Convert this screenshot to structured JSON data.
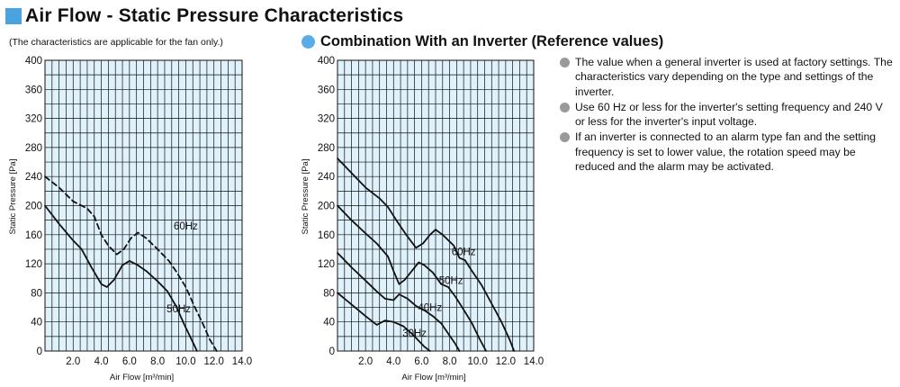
{
  "header": {
    "title": "Air Flow - Static Pressure Characteristics",
    "subtitle_note": "(The characteristics are applicable for the fan only.)",
    "accent_color": "#4aa3df"
  },
  "inverter_header": {
    "title": "Combination With an Inverter (Reference values)",
    "dot_color": "#5aace6"
  },
  "notes": [
    "The value when a general inverter is used at factory settings. The characteristics vary depending on the type and settings of the inverter.",
    "Use 60 Hz or less for the inverter's setting frequency and 240 V or less for the inverter's input voltage.",
    "If an inverter is connected to an alarm type fan and the setting frequency is set to lower value, the rotation speed may be reduced and the alarm may be activated."
  ],
  "chart_data": [
    {
      "type": "line",
      "xlabel": "Air Flow [m³/min]",
      "ylabel": "Static Pressure [Pa]",
      "xlim": [
        0,
        14
      ],
      "ylim": [
        0,
        400
      ],
      "x_ticks": [
        "2.0",
        "4.0",
        "6.0",
        "8.0",
        "10.0",
        "12.0",
        "14.0"
      ],
      "y_ticks": [
        "0",
        "40",
        "80",
        "120",
        "160",
        "200",
        "240",
        "280",
        "320",
        "360",
        "400"
      ],
      "grid": true,
      "series": [
        {
          "name": "60Hz",
          "style": "dashed",
          "label_at": [
            10.0,
            172
          ],
          "points": [
            [
              0,
              240
            ],
            [
              1,
              225
            ],
            [
              2,
              206
            ],
            [
              3,
              196
            ],
            [
              3.5,
              185
            ],
            [
              4,
              160
            ],
            [
              4.5,
              145
            ],
            [
              5.1,
              133
            ],
            [
              5.6,
              140
            ],
            [
              6.1,
              155
            ],
            [
              6.6,
              163
            ],
            [
              7.2,
              155
            ],
            [
              8,
              140
            ],
            [
              8.8,
              124
            ],
            [
              9.3,
              110
            ],
            [
              10,
              88
            ],
            [
              10.6,
              62
            ],
            [
              11.2,
              38
            ],
            [
              11.7,
              16
            ],
            [
              12.2,
              0
            ]
          ]
        },
        {
          "name": "50Hz",
          "style": "solid",
          "label_at": [
            9.5,
            58
          ],
          "points": [
            [
              0,
              200
            ],
            [
              1,
              175
            ],
            [
              2,
              152
            ],
            [
              2.6,
              140
            ],
            [
              3.3,
              115
            ],
            [
              4,
              92
            ],
            [
              4.4,
              88
            ],
            [
              4.9,
              98
            ],
            [
              5.5,
              118
            ],
            [
              6,
              124
            ],
            [
              6.6,
              118
            ],
            [
              7.2,
              110
            ],
            [
              8,
              96
            ],
            [
              8.7,
              82
            ],
            [
              9.3,
              62
            ],
            [
              9.9,
              36
            ],
            [
              10.5,
              12
            ],
            [
              10.8,
              0
            ]
          ]
        }
      ]
    },
    {
      "type": "line",
      "xlabel": "Air Flow [m³/min]",
      "ylabel": "Static Pressure [Pa]",
      "xlim": [
        0,
        14
      ],
      "ylim": [
        0,
        400
      ],
      "x_ticks": [
        "2.0",
        "4.0",
        "6.0",
        "8.0",
        "10.0",
        "12.0",
        "14.0"
      ],
      "y_ticks": [
        "0",
        "40",
        "80",
        "120",
        "160",
        "200",
        "240",
        "280",
        "320",
        "360",
        "400"
      ],
      "grid": true,
      "series": [
        {
          "name": "60Hz",
          "label_at": [
            9.0,
            137
          ],
          "points": [
            [
              0,
              265
            ],
            [
              1,
              245
            ],
            [
              2,
              225
            ],
            [
              3,
              210
            ],
            [
              3.6,
              198
            ],
            [
              4.2,
              180
            ],
            [
              4.9,
              160
            ],
            [
              5.6,
              142
            ],
            [
              6.1,
              148
            ],
            [
              6.6,
              160
            ],
            [
              7,
              167
            ],
            [
              7.5,
              160
            ],
            [
              8.3,
              145
            ],
            [
              8.7,
              128
            ],
            [
              9.1,
              125
            ],
            [
              9.6,
              110
            ],
            [
              10.3,
              90
            ],
            [
              11,
              65
            ],
            [
              11.7,
              40
            ],
            [
              12.3,
              15
            ],
            [
              12.6,
              0
            ]
          ]
        },
        {
          "name": "50Hz",
          "label_at": [
            8.1,
            97
          ],
          "points": [
            [
              0,
              200
            ],
            [
              1,
              180
            ],
            [
              2,
              162
            ],
            [
              2.8,
              148
            ],
            [
              3.6,
              130
            ],
            [
              4,
              110
            ],
            [
              4.4,
              92
            ],
            [
              4.8,
              98
            ],
            [
              5.3,
              110
            ],
            [
              5.8,
              122
            ],
            [
              6.2,
              118
            ],
            [
              6.8,
              108
            ],
            [
              7.4,
              92
            ],
            [
              7.9,
              88
            ],
            [
              8.4,
              75
            ],
            [
              9,
              57
            ],
            [
              9.6,
              38
            ],
            [
              10.1,
              18
            ],
            [
              10.6,
              0
            ]
          ]
        },
        {
          "name": "40Hz",
          "label_at": [
            6.6,
            60
          ],
          "points": [
            [
              0,
              135
            ],
            [
              1,
              115
            ],
            [
              2,
              97
            ],
            [
              2.8,
              82
            ],
            [
              3.4,
              72
            ],
            [
              4,
              70
            ],
            [
              4.4,
              78
            ],
            [
              5,
              72
            ],
            [
              5.6,
              62
            ],
            [
              6.2,
              56
            ],
            [
              6.8,
              48
            ],
            [
              7.4,
              38
            ],
            [
              7.9,
              24
            ],
            [
              8.4,
              10
            ],
            [
              8.7,
              0
            ]
          ]
        },
        {
          "name": "30Hz",
          "label_at": [
            5.5,
            25
          ],
          "points": [
            [
              0,
              80
            ],
            [
              1,
              64
            ],
            [
              2,
              48
            ],
            [
              2.8,
              36
            ],
            [
              3.4,
              42
            ],
            [
              4,
              40
            ],
            [
              4.7,
              34
            ],
            [
              5.3,
              24
            ],
            [
              5.8,
              14
            ],
            [
              6.2,
              6
            ],
            [
              6.6,
              0
            ]
          ]
        }
      ]
    }
  ]
}
